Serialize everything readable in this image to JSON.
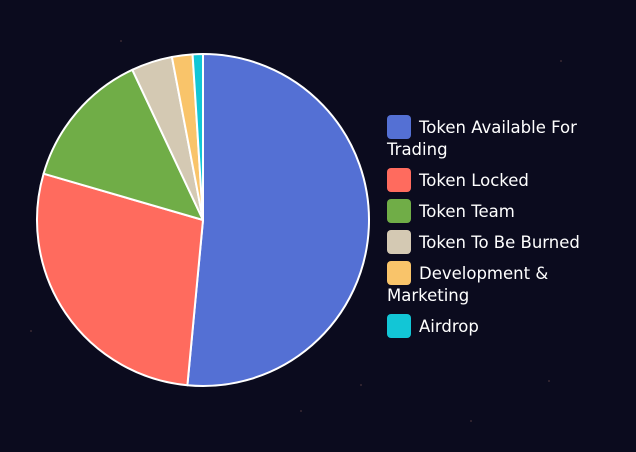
{
  "chart_data": {
    "type": "pie",
    "title": "",
    "legend_position": "right",
    "slices": [
      {
        "label": "Token Available For Trading",
        "value": 51.5,
        "color": "#5470d4"
      },
      {
        "label": "Token Locked",
        "value": 28.0,
        "color": "#ff6b5e"
      },
      {
        "label": "Token Team",
        "value": 13.5,
        "color": "#70ad47"
      },
      {
        "label": "Token To Be Burned",
        "value": 4.0,
        "color": "#d4c9b3"
      },
      {
        "label": "Development & Marketing",
        "value": 2.0,
        "color": "#f9c46a"
      },
      {
        "label": "Airdrop",
        "value": 1.0,
        "color": "#12c6d6"
      }
    ]
  }
}
